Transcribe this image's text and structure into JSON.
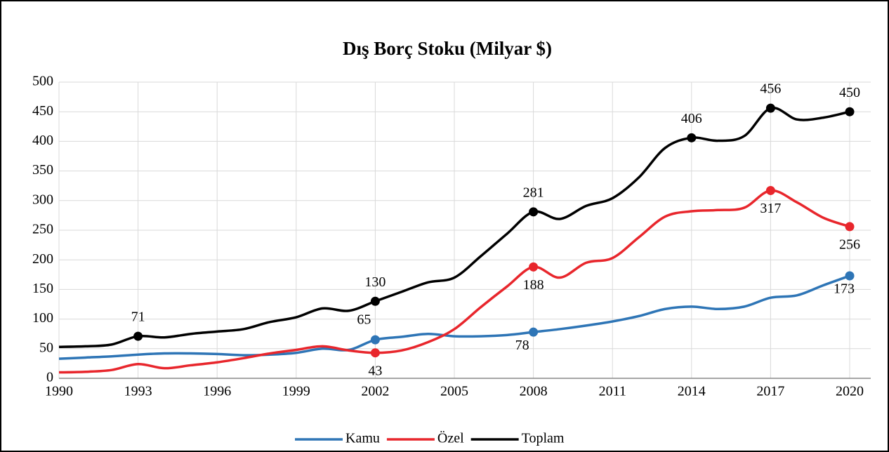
{
  "chart_data": {
    "type": "line",
    "title": "Dış Borç Stoku (Milyar $)",
    "x": [
      1990,
      1991,
      1992,
      1993,
      1994,
      1995,
      1996,
      1997,
      1998,
      1999,
      2000,
      2001,
      2002,
      2003,
      2004,
      2005,
      2006,
      2007,
      2008,
      2009,
      2010,
      2011,
      2012,
      2013,
      2014,
      2015,
      2016,
      2017,
      2018,
      2019,
      2020
    ],
    "xlim": [
      1990,
      2020
    ],
    "xticks": [
      1990,
      1993,
      1996,
      1999,
      2002,
      2005,
      2008,
      2011,
      2014,
      2017,
      2020
    ],
    "ylim": [
      0,
      500
    ],
    "yticks": [
      0,
      50,
      100,
      150,
      200,
      250,
      300,
      350,
      400,
      450,
      500
    ],
    "grid": true,
    "series": [
      {
        "name": "Kamu",
        "color": "#2e75b6",
        "values": [
          33,
          35,
          37,
          40,
          42,
          42,
          41,
          39,
          40,
          43,
          50,
          48,
          65,
          70,
          75,
          71,
          71,
          73,
          78,
          83,
          89,
          96,
          105,
          117,
          121,
          117,
          121,
          136,
          140,
          157,
          173
        ],
        "value_labels": [
          null,
          null,
          null,
          null,
          null,
          null,
          null,
          null,
          null,
          null,
          null,
          null,
          "65",
          null,
          null,
          null,
          null,
          null,
          "78",
          null,
          null,
          null,
          null,
          null,
          null,
          null,
          null,
          null,
          null,
          null,
          "173"
        ]
      },
      {
        "name": "Özel",
        "color": "#e8262c",
        "values": [
          10,
          11,
          14,
          24,
          17,
          22,
          27,
          34,
          42,
          48,
          54,
          47,
          43,
          47,
          61,
          83,
          120,
          155,
          188,
          170,
          195,
          203,
          238,
          273,
          282,
          284,
          288,
          317,
          297,
          271,
          256
        ],
        "value_labels": [
          null,
          null,
          null,
          null,
          null,
          null,
          null,
          null,
          null,
          null,
          null,
          null,
          "43",
          null,
          null,
          null,
          null,
          null,
          "188",
          null,
          null,
          null,
          null,
          null,
          null,
          null,
          null,
          "317",
          null,
          null,
          "256"
        ]
      },
      {
        "name": "Toplam",
        "color": "#000000",
        "values": [
          53,
          54,
          57,
          71,
          69,
          75,
          79,
          83,
          95,
          103,
          118,
          114,
          130,
          146,
          162,
          170,
          206,
          244,
          281,
          269,
          291,
          304,
          339,
          389,
          406,
          401,
          409,
          456,
          437,
          440,
          450
        ],
        "value_labels": [
          null,
          null,
          null,
          "71",
          null,
          null,
          null,
          null,
          null,
          null,
          null,
          null,
          "130",
          null,
          null,
          null,
          null,
          null,
          "281",
          null,
          null,
          null,
          null,
          null,
          "406",
          null,
          null,
          "456",
          null,
          null,
          "450"
        ]
      }
    ],
    "legend": "bottom"
  }
}
